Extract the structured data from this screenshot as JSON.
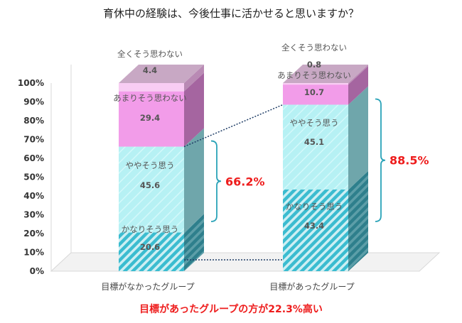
{
  "chart_data": {
    "type": "bar",
    "stacked": true,
    "title": "育休中の経験は、今後仕事に活かせると思いますか？",
    "categories": [
      "目標がなかったグループ",
      "目標があったグループ"
    ],
    "series": [
      {
        "name": "かなりそう思う",
        "values": [
          20.6,
          43.4
        ],
        "color": "#3bbcd0",
        "pattern": "diagonal-stripes"
      },
      {
        "name": "ややそう思う",
        "values": [
          45.6,
          45.1
        ],
        "color": "#b6f1f4"
      },
      {
        "name": "あまりそう思わない",
        "values": [
          29.4,
          10.7
        ],
        "color": "#f29ce9"
      },
      {
        "name": "全くそう思わない",
        "values": [
          4.4,
          0.8
        ],
        "color": "#f8cdf3"
      }
    ],
    "value_labels": [
      [
        "20.6",
        "45.6",
        "29.4",
        "4.4"
      ],
      [
        "43.4",
        "45.1",
        "10.7",
        "0.8"
      ]
    ],
    "ylim": [
      0,
      100
    ],
    "ytick_labels": [
      "0%",
      "10%",
      "20%",
      "30%",
      "40%",
      "50%",
      "60%",
      "70%",
      "80%",
      "90%",
      "100%"
    ],
    "grid": false,
    "annotations": [
      {
        "text": "66.2%",
        "category": 0,
        "color": "#ee1c1c"
      },
      {
        "text": "88.5%",
        "category": 1,
        "color": "#ee1c1c"
      }
    ],
    "footnote": "目標があったグループの方が22.3%高い",
    "footnote_color": "#ee1c1c"
  }
}
